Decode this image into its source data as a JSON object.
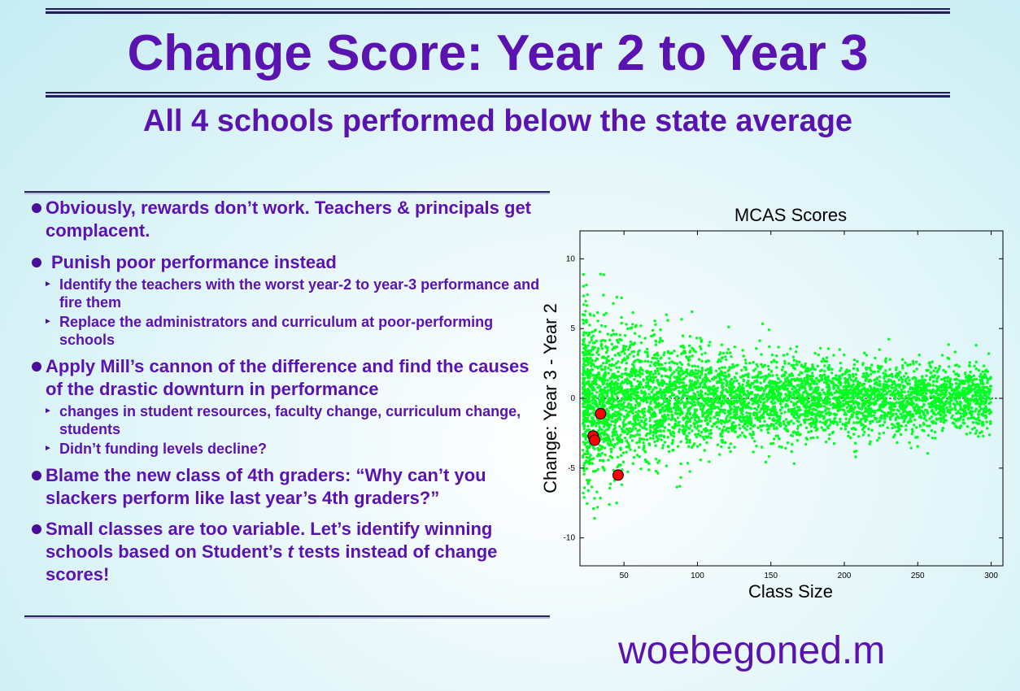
{
  "slide": {
    "title": "Change Score: Year 2 to Year 3",
    "subtitle": "All 4 schools performed below the state average",
    "footer": "woebegoned.m"
  },
  "bullets": [
    {
      "text": "Obviously, rewards don’t work. Teachers & principals get complacent.",
      "subs": []
    },
    {
      "text": "Punish poor performance instead",
      "subs": [
        "Identify the teachers with the worst year-2 to year-3 performance and fire them",
        "Replace the administrators and curriculum at poor-performing schools"
      ]
    },
    {
      "text": "Apply Mill’s cannon of the difference and find the causes of the drastic downturn in performance",
      "subs": [
        "changes in student resources, faculty change, curriculum change, students",
        "Didn’t funding levels decline?"
      ]
    },
    {
      "text": "Blame the new class of 4th graders: “Why can’t you slackers perform like last year’s 4th graders?”",
      "subs": []
    },
    {
      "text_before": "Small classes are too variable. Let’s identify winning schools based on Student’s ",
      "text_italic": "t",
      "text_after": " tests instead of change scores!",
      "subs": []
    }
  ],
  "colors": {
    "accent": "#5a12b0",
    "points": "#00ff1e",
    "highlight": "#ff0000"
  },
  "icons": {
    "bullet": "filled-circle",
    "sub_bullet": "right-triangle"
  },
  "chart_data": {
    "type": "scatter",
    "title": "MCAS Scores",
    "xlabel": "Class Size",
    "ylabel": "Change: Year 3 - Year 2",
    "xlim": [
      20,
      308
    ],
    "ylim": [
      -12,
      12
    ],
    "xticks": [
      50,
      100,
      150,
      200,
      250,
      300
    ],
    "yticks": [
      -10,
      -5,
      0,
      5,
      10
    ],
    "reference_line": {
      "y": 0,
      "style": "dashed"
    },
    "series": [
      {
        "point_count": 5000,
        "x_range": [
          22,
          300
        ],
        "description_of_spread": "vertical spread of about ±7 at small class sizes narrowing to about ±2 at 300",
        "notable_points": [
          [
            34,
            8.9
          ],
          [
            36,
            7.4
          ],
          [
            32,
            -7.8
          ],
          [
            40,
            -7.6
          ],
          [
            88,
            -6.3
          ],
          [
            30,
            -8.6
          ],
          [
            45,
            -7.5
          ]
        ]
      },
      {
        "highlighted": true,
        "points": [
          [
            34,
            -1.1
          ],
          [
            29,
            -2.7
          ],
          [
            30,
            -3.0
          ],
          [
            46,
            -5.5
          ]
        ]
      }
    ]
  }
}
